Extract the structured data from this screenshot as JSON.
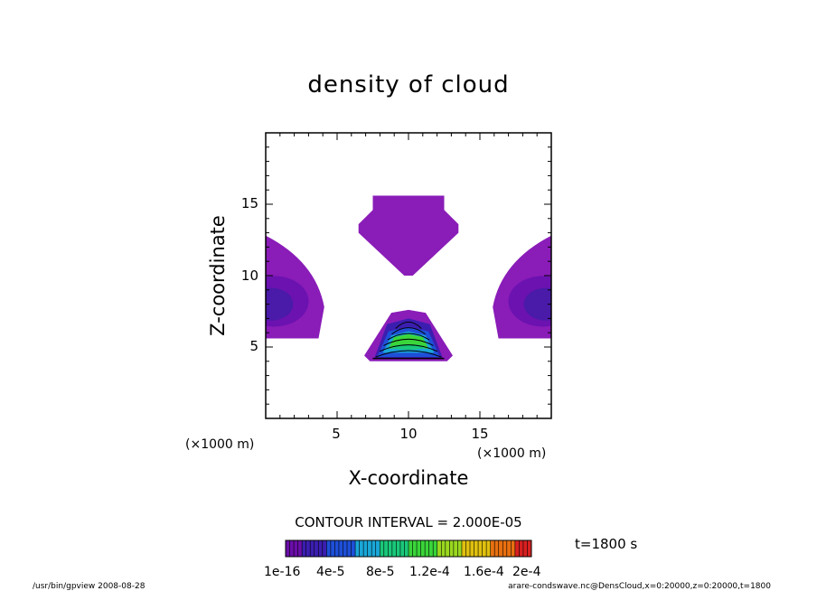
{
  "chart_data": {
    "type": "heatmap",
    "title": "density of cloud",
    "xlabel": "X-coordinate",
    "ylabel": "Z-coordinate",
    "x_unit": "(×1000 m)",
    "y_unit": "(×1000 m)",
    "xlim": [
      0,
      20
    ],
    "ylim": [
      0,
      20
    ],
    "x_ticks": [
      5,
      10,
      15
    ],
    "y_ticks": [
      5,
      10,
      15
    ],
    "contour_interval_label": "CONTOUR INTERVAL = 2.000E-05",
    "time_label": "t=1800 s",
    "colorbar": {
      "min": 0,
      "max": 0.0002,
      "tick_labels": [
        "1e-16",
        "4e-5",
        "8e-5",
        "1.2e-4",
        "1.6e-4",
        "2e-4"
      ],
      "tick_values": [
        1e-16,
        4e-05,
        8e-05,
        0.00012,
        0.00016,
        0.0002
      ],
      "colors": [
        "#6a0ea8",
        "#3b1eb0",
        "#1e4fd8",
        "#1aa7d8",
        "#1ac87a",
        "#3ad53a",
        "#9ad820",
        "#e0c010",
        "#e87010",
        "#d82020"
      ]
    },
    "regions": [
      {
        "name": "upper-cloud",
        "peak": 1e-05,
        "center": [
          10,
          14.2
        ]
      },
      {
        "name": "left-cloud",
        "peak": 2e-05,
        "center": [
          0.5,
          8.5
        ]
      },
      {
        "name": "right-cloud",
        "peak": 2e-05,
        "center": [
          19.5,
          8.5
        ]
      },
      {
        "name": "central-core",
        "peak": 0.0001,
        "center": [
          10,
          5.2
        ]
      }
    ],
    "grid": false
  },
  "footer": {
    "left": "/usr/bin/gpview   2008-08-28",
    "right": "arare-condswave.nc@DensCloud,x=0:20000,z=0:20000,t=1800"
  }
}
